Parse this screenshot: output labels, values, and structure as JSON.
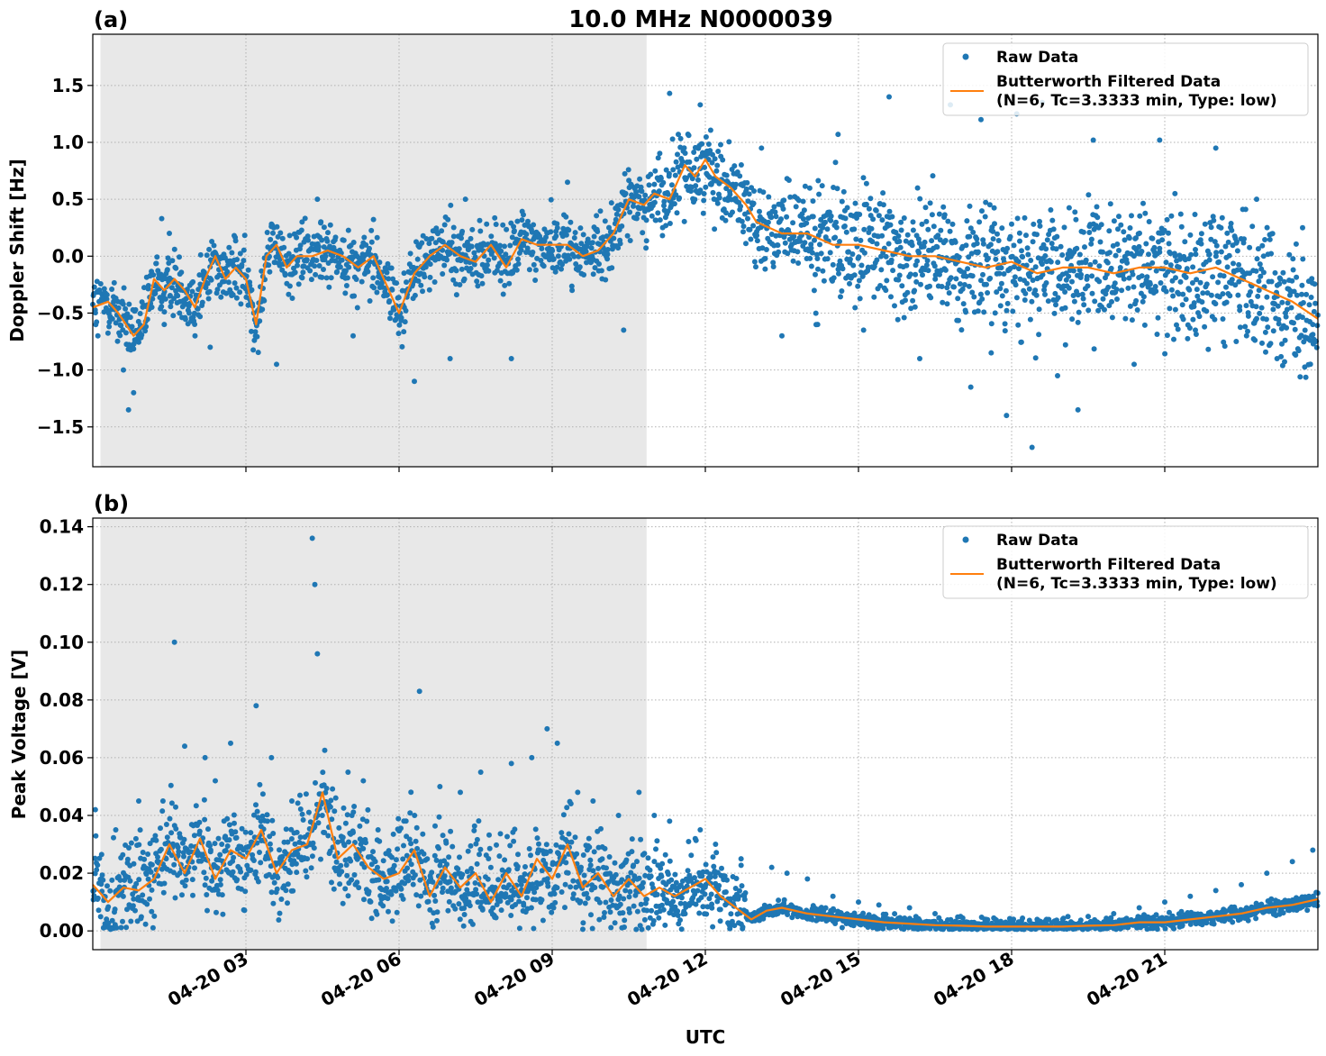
{
  "figure": {
    "title": "10.0 MHz N0000039",
    "xlabel": "UTC"
  },
  "colors": {
    "raw": "#1f77b4",
    "filtered": "#ff7f0e",
    "night_shade": "#e8e8e8",
    "grid": "#b0b0b0"
  },
  "legend": {
    "raw_label": "Raw Data",
    "filtered_label_line1": "Butterworth Filtered Data",
    "filtered_label_line2": "(N=6, Tc=3.3333 min, Type: low)",
    "placement": "upper right"
  },
  "chart_data": [
    {
      "type": "scatter",
      "panel_label": "(a)",
      "ylabel": "Doppler Shift [Hz]",
      "xlim_hours": [
        0.0,
        24.0
      ],
      "ylim": [
        -1.85,
        1.95
      ],
      "x_ticks": [
        {
          "value": 3,
          "label": "04-20 03"
        },
        {
          "value": 6,
          "label": "04-20 06"
        },
        {
          "value": 9,
          "label": "04-20 09"
        },
        {
          "value": 12,
          "label": "04-20 12"
        },
        {
          "value": 15,
          "label": "04-20 15"
        },
        {
          "value": 18,
          "label": "04-20 18"
        },
        {
          "value": 21,
          "label": "04-20 21"
        }
      ],
      "y_ticks": [
        {
          "value": 1.5,
          "label": "1.5"
        },
        {
          "value": 1.0,
          "label": "1.0"
        },
        {
          "value": 0.5,
          "label": "0.5"
        },
        {
          "value": 0.0,
          "label": "0.0"
        },
        {
          "value": -0.5,
          "label": "−0.5"
        },
        {
          "value": -1.0,
          "label": "−1.0"
        },
        {
          "value": -1.5,
          "label": "−1.5"
        }
      ],
      "night_shading_hours": [
        0.15,
        10.85
      ],
      "grid": true,
      "series": [
        {
          "name": "Butterworth Filtered Data",
          "kind": "line",
          "x_hours": [
            0.0,
            0.3,
            0.5,
            0.8,
            1.0,
            1.2,
            1.4,
            1.6,
            1.8,
            2.0,
            2.2,
            2.4,
            2.6,
            2.8,
            3.0,
            3.2,
            3.4,
            3.6,
            3.8,
            4.0,
            4.3,
            4.6,
            4.9,
            5.2,
            5.5,
            5.8,
            6.0,
            6.3,
            6.6,
            6.9,
            7.2,
            7.5,
            7.8,
            8.1,
            8.4,
            8.7,
            9.0,
            9.3,
            9.6,
            9.9,
            10.2,
            10.5,
            10.8,
            11.0,
            11.3,
            11.6,
            11.8,
            12.0,
            12.2,
            12.5,
            12.8,
            13.0,
            13.5,
            14.0,
            14.5,
            15.0,
            15.5,
            16.0,
            16.5,
            17.0,
            17.5,
            18.0,
            18.5,
            19.0,
            19.5,
            20.0,
            20.5,
            21.0,
            21.5,
            22.0,
            22.5,
            23.0,
            23.5,
            24.0
          ],
          "y_values": [
            -0.45,
            -0.4,
            -0.5,
            -0.7,
            -0.6,
            -0.2,
            -0.3,
            -0.2,
            -0.3,
            -0.45,
            -0.2,
            0.0,
            -0.2,
            -0.1,
            -0.2,
            -0.6,
            0.0,
            0.1,
            -0.1,
            0.0,
            0.0,
            0.05,
            0.0,
            -0.1,
            0.0,
            -0.3,
            -0.5,
            -0.15,
            0.0,
            0.1,
            0.0,
            -0.05,
            0.1,
            -0.1,
            0.15,
            0.1,
            0.1,
            0.1,
            0.0,
            0.05,
            0.2,
            0.5,
            0.45,
            0.55,
            0.5,
            0.8,
            0.7,
            0.85,
            0.7,
            0.6,
            0.45,
            0.3,
            0.2,
            0.2,
            0.1,
            0.1,
            0.05,
            0.0,
            0.0,
            -0.05,
            -0.1,
            -0.05,
            -0.15,
            -0.1,
            -0.1,
            -0.15,
            -0.1,
            -0.1,
            -0.15,
            -0.1,
            -0.2,
            -0.3,
            -0.4,
            -0.55
          ]
        },
        {
          "name": "Raw Data",
          "kind": "points",
          "x_hours": [
            0.1,
            0.6,
            0.7,
            0.8,
            1.35,
            1.4,
            1.5,
            1.7,
            2.3,
            3.3,
            3.6,
            4.1,
            4.4,
            5.1,
            6.3,
            7.0,
            7.3,
            8.2,
            9.3,
            10.4,
            11.3,
            11.9,
            12.3,
            13.1,
            13.5,
            14.2,
            14.6,
            15.1,
            15.6,
            16.2,
            16.8,
            17.2,
            17.4,
            17.6,
            17.9,
            18.1,
            18.4,
            18.6,
            18.9,
            19.3,
            19.6,
            20.1,
            20.4,
            20.9,
            21.2,
            21.6,
            22.0,
            22.4,
            22.8,
            23.2,
            23.7,
            23.9
          ],
          "y_values": [
            -0.7,
            -1.0,
            -1.35,
            -1.2,
            0.33,
            -0.6,
            0.2,
            -0.5,
            -0.8,
            -0.4,
            -0.95,
            0.3,
            0.5,
            -0.7,
            -1.1,
            -0.9,
            0.5,
            -0.9,
            0.65,
            -0.65,
            1.43,
            1.33,
            0.98,
            0.95,
            -0.7,
            -0.6,
            1.07,
            -0.65,
            1.4,
            -0.9,
            1.33,
            -1.15,
            1.2,
            -0.85,
            -1.4,
            1.25,
            -1.68,
            1.35,
            -1.05,
            -1.35,
            1.02,
            0.35,
            -0.95,
            1.02,
            0.55,
            -0.65,
            0.95,
            -0.75,
            0.5,
            -0.9,
            0.25,
            -0.6
          ]
        }
      ]
    },
    {
      "type": "scatter",
      "panel_label": "(b)",
      "ylabel": "Peak Voltage [V]",
      "xlim_hours": [
        0.0,
        24.0
      ],
      "ylim": [
        -0.0065,
        0.143
      ],
      "x_ticks": [
        {
          "value": 3,
          "label": "04-20 03"
        },
        {
          "value": 6,
          "label": "04-20 06"
        },
        {
          "value": 9,
          "label": "04-20 09"
        },
        {
          "value": 12,
          "label": "04-20 12"
        },
        {
          "value": 15,
          "label": "04-20 15"
        },
        {
          "value": 18,
          "label": "04-20 18"
        },
        {
          "value": 21,
          "label": "04-20 21"
        }
      ],
      "y_ticks": [
        {
          "value": 0.14,
          "label": "0.14"
        },
        {
          "value": 0.12,
          "label": "0.12"
        },
        {
          "value": 0.1,
          "label": "0.10"
        },
        {
          "value": 0.08,
          "label": "0.08"
        },
        {
          "value": 0.06,
          "label": "0.06"
        },
        {
          "value": 0.04,
          "label": "0.04"
        },
        {
          "value": 0.02,
          "label": "0.02"
        },
        {
          "value": 0.0,
          "label": "0.00"
        }
      ],
      "night_shading_hours": [
        0.15,
        10.85
      ],
      "grid": true,
      "series": [
        {
          "name": "Butterworth Filtered Data",
          "kind": "line",
          "x_hours": [
            0.0,
            0.3,
            0.6,
            0.9,
            1.2,
            1.5,
            1.8,
            2.1,
            2.4,
            2.7,
            3.0,
            3.3,
            3.6,
            3.9,
            4.2,
            4.5,
            4.8,
            5.1,
            5.4,
            5.7,
            6.0,
            6.3,
            6.6,
            6.9,
            7.2,
            7.5,
            7.8,
            8.1,
            8.4,
            8.7,
            9.0,
            9.3,
            9.6,
            9.9,
            10.2,
            10.5,
            10.8,
            11.1,
            11.4,
            11.7,
            12.0,
            12.3,
            12.6,
            12.9,
            13.2,
            13.5,
            14.0,
            14.5,
            15.0,
            15.5,
            16.0,
            16.5,
            17.0,
            17.5,
            18.0,
            18.5,
            19.0,
            19.5,
            20.0,
            20.5,
            21.0,
            21.5,
            22.0,
            22.5,
            23.0,
            23.5,
            24.0
          ],
          "y_values": [
            0.016,
            0.01,
            0.015,
            0.014,
            0.018,
            0.03,
            0.02,
            0.032,
            0.018,
            0.028,
            0.025,
            0.035,
            0.02,
            0.028,
            0.03,
            0.048,
            0.025,
            0.03,
            0.022,
            0.018,
            0.02,
            0.028,
            0.012,
            0.022,
            0.015,
            0.02,
            0.01,
            0.02,
            0.012,
            0.025,
            0.018,
            0.03,
            0.015,
            0.02,
            0.012,
            0.018,
            0.012,
            0.015,
            0.012,
            0.015,
            0.018,
            0.012,
            0.008,
            0.004,
            0.007,
            0.008,
            0.006,
            0.005,
            0.004,
            0.003,
            0.0025,
            0.002,
            0.0018,
            0.0015,
            0.0015,
            0.0015,
            0.0015,
            0.0018,
            0.002,
            0.003,
            0.003,
            0.004,
            0.005,
            0.006,
            0.008,
            0.009,
            0.011
          ]
        },
        {
          "name": "Raw Data",
          "kind": "points",
          "x_hours": [
            0.05,
            0.45,
            0.9,
            1.6,
            1.8,
            2.2,
            2.4,
            2.7,
            3.2,
            3.5,
            3.9,
            4.3,
            4.35,
            4.4,
            5.0,
            5.3,
            6.4,
            6.8,
            7.2,
            7.6,
            8.2,
            8.6,
            8.9,
            9.1,
            9.5,
            9.8,
            10.3,
            10.7,
            11.0,
            11.3,
            11.9,
            12.2,
            12.7,
            13.3,
            13.6,
            14.0,
            14.5,
            15.0,
            15.4,
            16.0,
            16.5,
            17.0,
            17.5,
            18.0,
            18.5,
            19.0,
            19.5,
            20.0,
            20.5,
            21.0,
            21.5,
            22.0,
            22.5,
            23.0,
            23.5,
            23.9
          ],
          "y_values": [
            0.042,
            0.035,
            0.045,
            0.1,
            0.064,
            0.06,
            0.052,
            0.065,
            0.078,
            0.06,
            0.045,
            0.136,
            0.12,
            0.096,
            0.055,
            0.052,
            0.083,
            0.05,
            0.048,
            0.055,
            0.058,
            0.06,
            0.07,
            0.065,
            0.048,
            0.045,
            0.04,
            0.048,
            0.04,
            0.038,
            0.035,
            0.03,
            0.025,
            0.022,
            0.02,
            0.018,
            0.012,
            0.01,
            0.009,
            0.008,
            0.006,
            0.005,
            0.004,
            0.004,
            0.004,
            0.004,
            0.005,
            0.006,
            0.008,
            0.01,
            0.012,
            0.014,
            0.016,
            0.02,
            0.024,
            0.028
          ]
        }
      ]
    }
  ]
}
